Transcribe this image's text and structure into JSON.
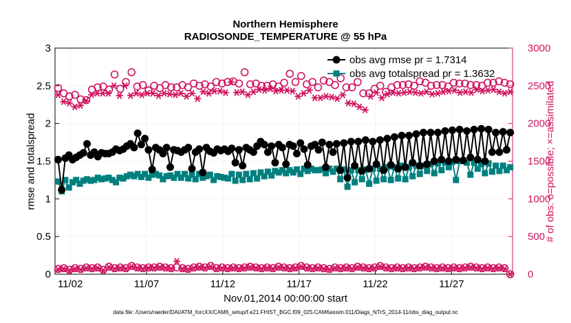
{
  "chart_data": {
    "type": "line",
    "title": "Northern Hemisphere",
    "subtitle": "RADIOSONDE_TEMPERATURE @ 55 hPa",
    "xlabel": "Nov.01,2014 00:00:00 start",
    "ylabel_left": "rmse and totalspread",
    "ylabel_right": "# of obs: o=possible; ×=assimilated",
    "footnote": "data file: /Users/raeder/DAI/ATM_forcXX/CAM6_setup/f.e21.FHIST_BGC.f09_025.CAM6assim.011/Diags_NTrS_2014-11/obs_diag_output.nc",
    "x_tick_labels": [
      "11/02",
      "11/07",
      "11/12",
      "11/17",
      "11/22",
      "11/27"
    ],
    "x_tick_days": [
      2,
      7,
      12,
      17,
      22,
      27
    ],
    "xlim_days": [
      1,
      31
    ],
    "ylim_left": [
      0,
      3
    ],
    "yticks_left": [
      "0",
      "0.5",
      "1",
      "1.5",
      "2",
      "2.5",
      "3"
    ],
    "ylim_right": [
      0,
      3000
    ],
    "yticks_right": [
      "0",
      "500",
      "1000",
      "1500",
      "2000",
      "2500",
      "3000"
    ],
    "legend_position": "top-right",
    "colors": {
      "rmse": "#000000",
      "spread": "#00807f",
      "obs": "#d0135f",
      "axis": "#000000",
      "grid": "#d9d9d9"
    },
    "series": [
      {
        "name": "obs avg rmse pr = 1.7314",
        "axis": "left",
        "marker": "circle",
        "values": [
          1.52,
          1.12,
          1.54,
          1.58,
          1.52,
          1.55,
          1.58,
          1.61,
          1.73,
          1.58,
          1.62,
          1.56,
          1.61,
          1.6,
          1.6,
          1.62,
          1.66,
          1.64,
          1.66,
          1.7,
          1.73,
          1.68,
          1.87,
          1.72,
          1.8,
          1.65,
          1.39,
          1.68,
          1.65,
          1.6,
          1.68,
          1.42,
          1.65,
          1.64,
          1.62,
          1.65,
          1.68,
          1.4,
          1.62,
          1.66,
          1.35,
          1.68,
          1.63,
          1.61,
          1.66,
          1.64,
          1.66,
          1.63,
          1.67,
          1.48,
          1.65,
          1.44,
          1.68,
          1.65,
          1.62,
          1.7,
          1.76,
          1.72,
          1.62,
          1.7,
          1.48,
          1.72,
          1.68,
          1.46,
          1.72,
          1.7,
          1.6,
          1.74,
          1.66,
          1.45,
          1.7,
          1.72,
          1.65,
          1.75,
          1.42,
          1.72,
          1.62,
          1.73,
          1.38,
          1.74,
          1.28,
          1.76,
          1.44,
          1.76,
          1.37,
          1.78,
          1.4,
          1.76,
          1.46,
          1.78,
          1.38,
          1.8,
          1.45,
          1.82,
          1.4,
          1.84,
          1.42,
          1.84,
          1.48,
          1.86,
          1.44,
          1.88,
          1.46,
          1.88,
          1.5,
          1.88,
          1.52,
          1.9,
          1.5,
          1.91,
          1.52,
          1.92,
          1.51,
          1.9,
          1.55,
          1.92,
          1.52,
          1.93,
          1.5,
          1.92,
          1.62,
          1.88,
          1.62,
          1.89,
          1.65,
          1.88
        ]
      },
      {
        "name": "obs avg totalspread pr = 1.3632",
        "axis": "left",
        "marker": "square",
        "values": [
          1.23,
          1.1,
          1.25,
          1.15,
          1.22,
          1.25,
          1.2,
          1.24,
          1.26,
          1.24,
          1.25,
          1.28,
          1.26,
          1.27,
          1.28,
          1.25,
          1.22,
          1.28,
          1.27,
          1.3,
          1.32,
          1.3,
          1.33,
          1.29,
          1.33,
          1.28,
          1.32,
          1.33,
          1.31,
          1.26,
          1.3,
          1.31,
          1.28,
          1.33,
          1.28,
          1.33,
          1.27,
          1.32,
          1.26,
          1.33,
          1.28,
          1.3,
          1.32,
          1.25,
          1.3,
          1.29,
          1.28,
          1.27,
          1.33,
          1.24,
          1.32,
          1.25,
          1.33,
          1.26,
          1.34,
          1.27,
          1.35,
          1.3,
          1.36,
          1.31,
          1.37,
          1.35,
          1.38,
          1.34,
          1.38,
          1.35,
          1.39,
          1.33,
          1.4,
          1.37,
          1.4,
          1.38,
          1.38,
          1.39,
          1.34,
          1.4,
          1.36,
          1.4,
          1.26,
          1.39,
          1.16,
          1.38,
          1.22,
          1.38,
          1.26,
          1.39,
          1.2,
          1.4,
          1.24,
          1.4,
          1.26,
          1.42,
          1.25,
          1.42,
          1.27,
          1.44,
          1.26,
          1.42,
          1.3,
          1.44,
          1.33,
          1.44,
          1.37,
          1.46,
          1.34,
          1.47,
          1.38,
          1.48,
          1.42,
          1.49,
          1.25,
          1.5,
          1.51,
          1.48,
          1.32,
          1.48,
          1.4,
          1.46,
          1.34,
          1.47,
          1.36,
          1.44,
          1.37,
          1.44,
          1.38,
          1.42
        ]
      },
      {
        "name": "# of obs possible",
        "axis": "right",
        "marker": "open-circle",
        "values": [
          2470,
          2400,
          2360,
          2380,
          2320,
          2310,
          2450,
          2480,
          2490,
          2450,
          2650,
          2460,
          2550,
          2680,
          2490,
          2510,
          2440,
          2500,
          2470,
          2510,
          2480,
          2480,
          2510,
          2480,
          2530,
          2500,
          2520,
          2490,
          2550,
          2530,
          2550,
          2560,
          2530,
          2680,
          2520,
          2530,
          2500,
          2500,
          2520,
          2490,
          2540,
          2660,
          2550,
          2630,
          2520,
          2550,
          2480,
          2570,
          2550,
          2510,
          2600,
          2480,
          2480,
          2550,
          2400,
          2400,
          2460,
          2500,
          2420,
          2480,
          2510,
          2510,
          2520,
          2500,
          2560,
          2540,
          2500,
          2510,
          2510,
          2490,
          2540,
          2530,
          2530,
          2510,
          2510,
          2500,
          2540,
          2540,
          2560,
          2540,
          2520
        ]
      },
      {
        "name": "# of obs assimilated",
        "axis": "right",
        "marker": "asterisk",
        "values": [
          2380,
          2290,
          2270,
          2220,
          2240,
          2300,
          2380,
          2400,
          2400,
          2400,
          2500,
          2370,
          2500,
          2370,
          2400,
          2380,
          2400,
          2400,
          2370,
          2400,
          2390,
          2380,
          2400,
          2360,
          2400,
          2330,
          2420,
          2400,
          2430,
          2430,
          2410,
          2550,
          2410,
          2420,
          2380,
          2420,
          2450,
          2440,
          2460,
          2430,
          2440,
          2440,
          2430,
          2360,
          2400,
          2440,
          2340,
          2340,
          2360,
          2350,
          2330,
          2380,
          2270,
          2260,
          2220,
          2180,
          2360,
          2410,
          2340,
          2390,
          2410,
          2400,
          2410,
          2420,
          2410,
          2400,
          2420,
          2390,
          2400,
          2420,
          2430,
          2440,
          2410,
          2420,
          2410,
          2450,
          2430,
          2440,
          2450,
          2420,
          2400,
          2420
        ]
      },
      {
        "name": "# of obs possible (bottom)",
        "axis": "right",
        "marker": "open-circle",
        "values": [
          70,
          80,
          60,
          80,
          70,
          90,
          80,
          90,
          60,
          100,
          80,
          90,
          80,
          110,
          90,
          80,
          90,
          90,
          100,
          90,
          80,
          90,
          80,
          70,
          90,
          100,
          90,
          110,
          80,
          90,
          80,
          90,
          80,
          90,
          100,
          90,
          80,
          90,
          80,
          100,
          90,
          80,
          90,
          110,
          90,
          80,
          90,
          80,
          70,
          90,
          80,
          90,
          80,
          100,
          90,
          80,
          90,
          110,
          90,
          80,
          90,
          80,
          90,
          80,
          90,
          100,
          90,
          80,
          90,
          80,
          90,
          80,
          90,
          100,
          90,
          80,
          90,
          80,
          90,
          80,
          0
        ]
      },
      {
        "name": "# of obs assimilated (bottom)",
        "axis": "right",
        "marker": "asterisk",
        "values": [
          60,
          70,
          50,
          70,
          60,
          80,
          70,
          80,
          50,
          90,
          70,
          80,
          70,
          100,
          80,
          70,
          80,
          80,
          90,
          80,
          70,
          170,
          70,
          60,
          80,
          90,
          80,
          100,
          70,
          80,
          70,
          80,
          70,
          80,
          90,
          80,
          70,
          80,
          70,
          90,
          80,
          70,
          80,
          100,
          80,
          70,
          80,
          70,
          60,
          80,
          70,
          80,
          70,
          90,
          80,
          70,
          80,
          100,
          80,
          70,
          80,
          70,
          80,
          70,
          80,
          90,
          80,
          70,
          80,
          70,
          80,
          70,
          80,
          90,
          80,
          70,
          80,
          70,
          80,
          70,
          0
        ]
      }
    ]
  }
}
